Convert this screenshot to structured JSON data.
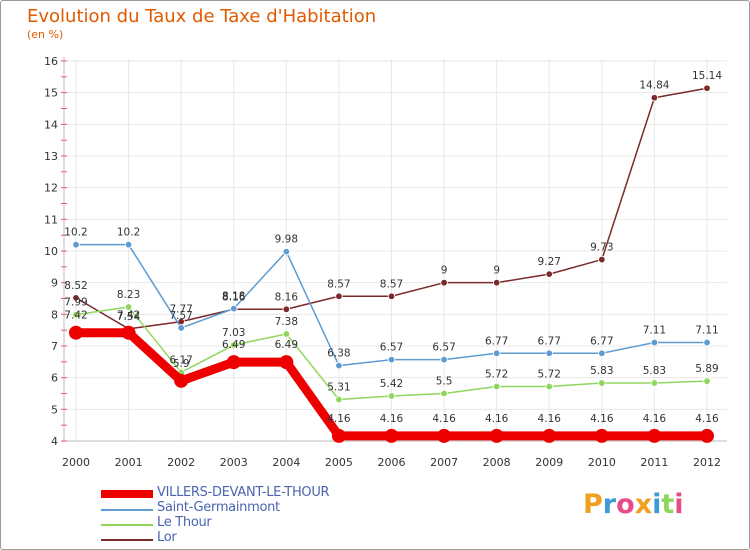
{
  "chart_data": {
    "type": "line",
    "title": "Evolution du Taux de Taxe d'Habitation",
    "subtitle": "(en %)",
    "x": [
      "2000",
      "2001",
      "2002",
      "2003",
      "2004",
      "2005",
      "2006",
      "2007",
      "2008",
      "2009",
      "2010",
      "2011",
      "2012"
    ],
    "ylim": [
      4,
      16
    ],
    "yticks": [
      "4",
      "5",
      "6",
      "7",
      "8",
      "9",
      "10",
      "11",
      "12",
      "13",
      "14",
      "15",
      "16"
    ],
    "grid": true,
    "legend_position": "bottom-left",
    "series": [
      {
        "name": "VILLERS-DEVANT-LE-THOUR",
        "color": "#ee0000",
        "values": [
          7.42,
          7.42,
          5.9,
          6.49,
          6.49,
          4.16,
          4.16,
          4.16,
          4.16,
          4.16,
          4.16,
          4.16,
          4.16
        ],
        "labels": [
          "7.42",
          "7.42",
          "5.9",
          "6.49",
          "6.49",
          "4.16",
          "4.16",
          "4.16",
          "4.16",
          "4.16",
          "4.16",
          "4.16",
          "4.16"
        ]
      },
      {
        "name": "Saint-Germainmont",
        "color": "#5e9bd0",
        "values": [
          10.2,
          10.2,
          7.57,
          8.18,
          9.98,
          6.38,
          6.57,
          6.57,
          6.77,
          6.77,
          6.77,
          7.11,
          7.11
        ],
        "labels": [
          "10.2",
          "10.2",
          "7.57",
          "8.18",
          "9.98",
          "6.38",
          "6.57",
          "6.57",
          "6.77",
          "6.77",
          "6.77",
          "7.11",
          "7.11"
        ]
      },
      {
        "name": "Le Thour",
        "color": "#90d65c",
        "values": [
          7.99,
          8.23,
          6.17,
          7.03,
          7.38,
          5.31,
          5.42,
          5.5,
          5.72,
          5.72,
          5.83,
          5.83,
          5.89
        ],
        "labels": [
          "7.99",
          "8.23",
          "6.17",
          "7.03",
          "7.38",
          "5.31",
          "5.42",
          "5.5",
          "5.72",
          "5.72",
          "5.83",
          "5.83",
          "5.89"
        ]
      },
      {
        "name": "Lor",
        "color": "#7a2a2a",
        "values": [
          8.52,
          7.54,
          7.77,
          8.16,
          8.16,
          8.57,
          8.57,
          9,
          9,
          9.27,
          9.73,
          14.84,
          15.14
        ],
        "labels": [
          "8.52",
          "7.54",
          "7.77",
          "8.16",
          "8.16",
          "8.57",
          "8.57",
          "9",
          "9",
          "9.27",
          "9.73",
          "14.84",
          "15.14"
        ]
      }
    ]
  },
  "logo": {
    "letters": [
      "P",
      "r",
      "o",
      "x",
      "i",
      "t",
      "i"
    ],
    "colors": [
      "#f0a020",
      "#3a9bd8",
      "#e84a8a",
      "#f0a020",
      "#3a9bd8",
      "#90d65c",
      "#e84a8a"
    ]
  }
}
